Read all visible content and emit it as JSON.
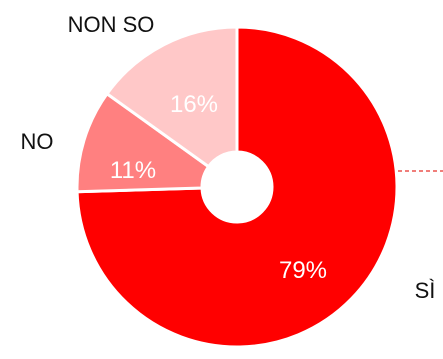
{
  "chart_data": {
    "type": "pie",
    "donut": true,
    "categories": [
      "SÌ",
      "NO",
      "NON SO"
    ],
    "values": [
      79,
      11,
      16
    ],
    "value_labels": [
      "79%",
      "11%",
      "16%"
    ],
    "colors": [
      "#ff0000",
      "#ff8080",
      "#ffc8c8"
    ],
    "value_label_color": "#ffffff",
    "leader_line_color": "#e8302a"
  }
}
